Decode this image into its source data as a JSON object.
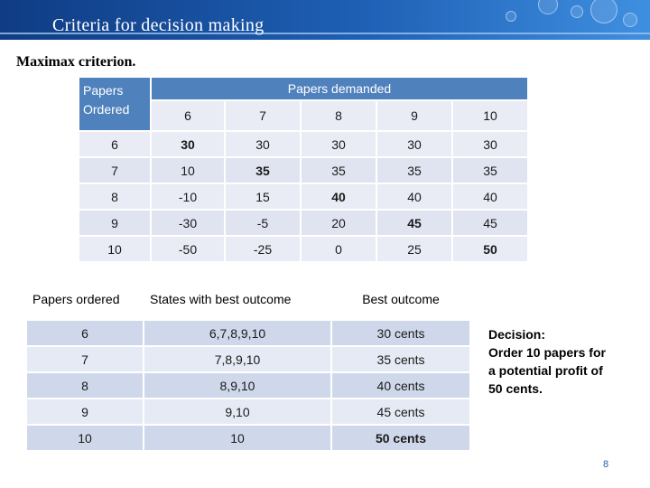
{
  "header": {
    "title": "Criteria for decision making"
  },
  "subtitle": "Maximax criterion.",
  "payoff_table": {
    "corner_label": "Papers Ordered",
    "demand_label": "Papers demanded",
    "demand_values": [
      "6",
      "7",
      "8",
      "9",
      "10"
    ],
    "rows": [
      {
        "ordered": "6",
        "values": [
          "30",
          "30",
          "30",
          "30",
          "30"
        ]
      },
      {
        "ordered": "7",
        "values": [
          "10",
          "35",
          "35",
          "35",
          "35"
        ]
      },
      {
        "ordered": "8",
        "values": [
          "-10",
          "15",
          "40",
          "40",
          "40"
        ]
      },
      {
        "ordered": "9",
        "values": [
          "-30",
          "-5",
          "20",
          "45",
          "45"
        ]
      },
      {
        "ordered": "10",
        "values": [
          "-50",
          "-25",
          "0",
          "25",
          "50"
        ]
      }
    ]
  },
  "best_table": {
    "headers": [
      "Papers ordered",
      "States with best outcome",
      "Best outcome"
    ],
    "rows": [
      {
        "ordered": "6",
        "states": "6,7,8,9,10",
        "outcome": "30 cents"
      },
      {
        "ordered": "7",
        "states": "7,8,9,10",
        "outcome": "35 cents"
      },
      {
        "ordered": "8",
        "states": "8,9,10",
        "outcome": "40 cents"
      },
      {
        "ordered": "9",
        "states": "9,10",
        "outcome": "45 cents"
      },
      {
        "ordered": "10",
        "states": "10",
        "outcome": "50 cents"
      }
    ]
  },
  "decision": {
    "line1": "Decision:",
    "line2": "Order 10 papers for",
    "line3": "a potential profit of",
    "line4": "50 cents."
  },
  "page_number": "8"
}
